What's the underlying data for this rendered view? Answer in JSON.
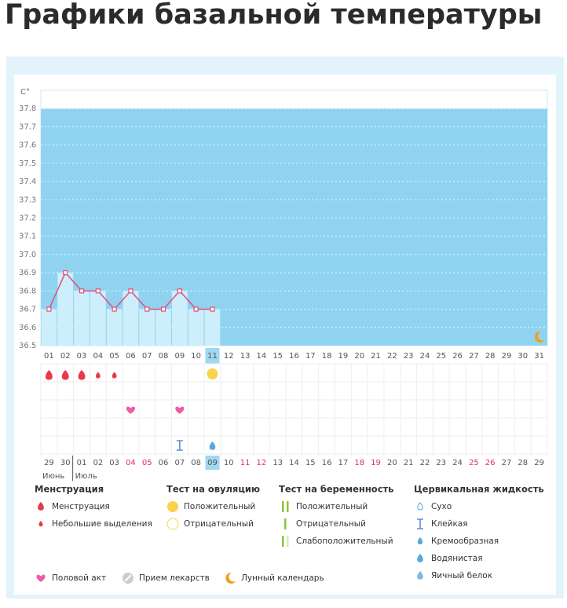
{
  "page_title": "Графики базальной температуры",
  "chart_data": {
    "type": "line",
    "y_label": "C°",
    "categories": [
      "01",
      "02",
      "03",
      "04",
      "05",
      "06",
      "07",
      "08",
      "09",
      "10",
      "11",
      "12",
      "13",
      "14",
      "15",
      "16",
      "17",
      "18",
      "19",
      "20",
      "21",
      "22",
      "23",
      "24",
      "25",
      "26",
      "27",
      "28",
      "29",
      "30",
      "31"
    ],
    "values": [
      36.7,
      36.9,
      36.8,
      36.8,
      36.7,
      36.8,
      36.7,
      36.7,
      36.8,
      36.7,
      36.7,
      null,
      null,
      null,
      null,
      null,
      null,
      null,
      null,
      null,
      null,
      null,
      null,
      null,
      null,
      null,
      null,
      null,
      null,
      null,
      null
    ],
    "color": "#e0507a",
    "bar_color": "#cdeefb",
    "background": "#8fd3f1",
    "ylim": [
      36.5,
      37.9
    ],
    "yticks": [
      36.5,
      36.6,
      36.7,
      36.8,
      36.9,
      {
        "value": 37,
        "label": "37.0"
      },
      37.1,
      37.2,
      37.3,
      37.4,
      37.5,
      37.6,
      37.7,
      37.8
    ],
    "grid": true,
    "selected_index": 10,
    "dates": [
      "29",
      "30",
      "01",
      "02",
      "03",
      "04",
      "05",
      "06",
      "07",
      "08",
      "09",
      "10",
      "11",
      "12",
      "13",
      "14",
      "15",
      "16",
      "17",
      "18",
      "19",
      "20",
      "21",
      "22",
      "23",
      "24",
      "25",
      "26",
      "27",
      "28",
      "29"
    ],
    "weekend_indices": [
      5,
      6,
      12,
      13,
      19,
      20,
      26,
      27
    ],
    "months": [
      {
        "index": 0,
        "label": "Июнь"
      },
      {
        "index": 2,
        "label": "Июль"
      }
    ],
    "menstruation_days": [
      0,
      1,
      2
    ],
    "light_days": [
      3,
      4
    ],
    "ovulation_positive_days": [
      10
    ],
    "intercourse_days": [
      5,
      8
    ],
    "sticky_days": [
      8
    ],
    "watery_days": [
      10
    ],
    "moon_days": [
      30
    ]
  },
  "legend": {
    "sections": [
      {
        "title": "Менструация",
        "items": [
          "Менструация",
          "Небольшие выделения"
        ]
      },
      {
        "title": "Тест на овуляцию",
        "items": [
          "Положительный",
          "Отрицательный"
        ]
      },
      {
        "title": "Тест на беременность",
        "items": [
          "Положительный",
          "Отрицательный",
          "Слабоположительный"
        ]
      },
      {
        "title": "Цервикальная жидкость",
        "items": [
          "Сухо",
          "Клейкая",
          "Кремообразная",
          "Водянистая",
          "Яичный белок"
        ]
      }
    ],
    "bottom": [
      "Половой акт",
      "Прием лекарств",
      "Лунный календарь"
    ]
  }
}
